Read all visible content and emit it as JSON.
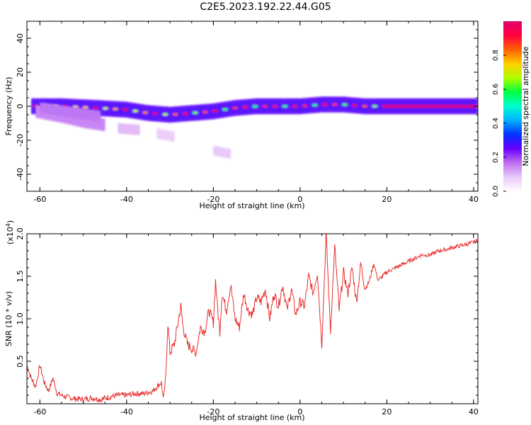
{
  "figure": {
    "title": "C2E5.2023.192.22.44.G05"
  },
  "colors": {
    "snr_line": "#e8302f",
    "frame": "#000000",
    "colormap": [
      "#ffffff",
      "#e8c8f8",
      "#c070f0",
      "#6a00ff",
      "#0030ff",
      "#00b0ff",
      "#00ffd0",
      "#00ff40",
      "#b0ff00",
      "#ffd000",
      "#ff6000",
      "#ff0040",
      "#e0006a"
    ]
  },
  "chart_data": [
    {
      "type": "heatmap",
      "title": "C2E5.2023.192.22.44.G05",
      "xlabel": "Height of straight line (km)",
      "ylabel": "Frequency (Hz)",
      "xlim": [
        -63,
        41
      ],
      "ylim": [
        -50,
        50
      ],
      "xticks": [
        -60,
        -40,
        -20,
        0,
        20,
        40
      ],
      "yticks": [
        -40,
        -20,
        0,
        20,
        40
      ],
      "colorbar": {
        "label": "Normalized spectral amplitude",
        "range": [
          0.0,
          1.0
        ],
        "ticks": [
          0.0,
          0.2,
          0.4,
          0.6,
          0.8
        ],
        "tick_labels": [
          "0.0",
          "0.2",
          "0.4",
          "0.6",
          "0.8"
        ],
        "placement": "right"
      },
      "ridges": [
        {
          "points": [
            [
              -62,
              0
            ],
            [
              -55,
              0
            ],
            [
              -47,
              -1
            ],
            [
              -40,
              -2
            ],
            [
              -35,
              -4
            ],
            [
              -30,
              -5
            ],
            [
              -25,
              -4
            ],
            [
              -20,
              -3
            ],
            [
              -15,
              -1
            ],
            [
              -10,
              0
            ],
            [
              0,
              0
            ],
            [
              5,
              1
            ],
            [
              10,
              1
            ],
            [
              15,
              0
            ],
            [
              20,
              0
            ],
            [
              41,
              0
            ]
          ],
          "amp": 0.85,
          "spread": 2.2
        },
        {
          "points": [
            [
              -61,
              -3
            ],
            [
              -55,
              -6
            ],
            [
              -50,
              -9
            ],
            [
              -45,
              -11
            ]
          ],
          "amp": 0.45,
          "spread": 1.8
        },
        {
          "points": [
            [
              -60,
              -1
            ],
            [
              -52,
              -4
            ],
            [
              -46,
              -6
            ]
          ],
          "amp": 0.5,
          "spread": 1.6
        },
        {
          "points": [
            [
              -42,
              -13
            ],
            [
              -37,
              -14
            ]
          ],
          "amp": 0.3,
          "spread": 1.5
        },
        {
          "points": [
            [
              -33,
              -16
            ],
            [
              -29,
              -18
            ]
          ],
          "amp": 0.22,
          "spread": 1.5
        },
        {
          "points": [
            [
              -20,
              -26
            ],
            [
              -16,
              -28
            ]
          ],
          "amp": 0.25,
          "spread": 1.4
        }
      ]
    },
    {
      "type": "line",
      "xlabel": "Height of straight line (km)",
      "ylabel": "SNR (10 * v/v)",
      "y_multiplier_label": "(x10",
      "y_multiplier_exp": "4",
      "y_multiplier_close": ")",
      "xlim": [
        -63,
        41
      ],
      "ylim": [
        0,
        2.0
      ],
      "xticks": [
        -60,
        -40,
        -20,
        0,
        20,
        40
      ],
      "yticks": [
        0.5,
        1.0,
        1.5,
        2.0
      ],
      "ytick_labels": [
        "0.5",
        "1.0",
        "1.5",
        "2.0"
      ],
      "series": [
        {
          "x": [
            -63,
            -62,
            -61,
            -60,
            -59,
            -58,
            -57,
            -56,
            -55,
            -54,
            -52,
            -50,
            -48,
            -46,
            -44,
            -42,
            -40,
            -38,
            -36,
            -34,
            -33,
            -32,
            -31.5,
            -31,
            -30.5,
            -30,
            -29,
            -28,
            -27.5,
            -27,
            -26,
            -25,
            -24,
            -23,
            -22,
            -21,
            -20,
            -19.5,
            -19,
            -18.5,
            -18,
            -17,
            -16,
            -15,
            -14,
            -13,
            -12,
            -11,
            -10,
            -9,
            -8,
            -7,
            -6,
            -5,
            -4,
            -3,
            -2,
            -1,
            0,
            1,
            2,
            3,
            4,
            5,
            6,
            7,
            8,
            9,
            10,
            11,
            12,
            13,
            14,
            15,
            16,
            17,
            18,
            19,
            20,
            22,
            24,
            26,
            28,
            30,
            32,
            34,
            36,
            38,
            40,
            41
          ],
          "y": [
            0.45,
            0.3,
            0.2,
            0.45,
            0.25,
            0.15,
            0.3,
            0.12,
            0.1,
            0.08,
            0.06,
            0.05,
            0.07,
            0.05,
            0.08,
            0.1,
            0.1,
            0.12,
            0.12,
            0.15,
            0.2,
            0.25,
            0.05,
            0.3,
            0.95,
            0.6,
            0.7,
            1.0,
            1.15,
            0.9,
            0.7,
            0.65,
            0.6,
            0.9,
            0.85,
            1.1,
            0.95,
            1.45,
            1.1,
            0.85,
            1.3,
            1.1,
            1.4,
            1.0,
            0.9,
            1.3,
            1.1,
            1.05,
            1.25,
            1.2,
            1.35,
            1.0,
            1.3,
            1.15,
            1.4,
            1.1,
            1.35,
            1.05,
            1.2,
            1.15,
            1.5,
            1.3,
            1.55,
            0.7,
            2.0,
            0.85,
            1.85,
            1.1,
            1.55,
            1.3,
            1.6,
            1.2,
            1.65,
            1.35,
            1.45,
            1.65,
            1.45,
            1.5,
            1.55,
            1.6,
            1.65,
            1.7,
            1.75,
            1.75,
            1.8,
            1.82,
            1.85,
            1.87,
            1.9,
            1.92
          ]
        }
      ]
    }
  ]
}
